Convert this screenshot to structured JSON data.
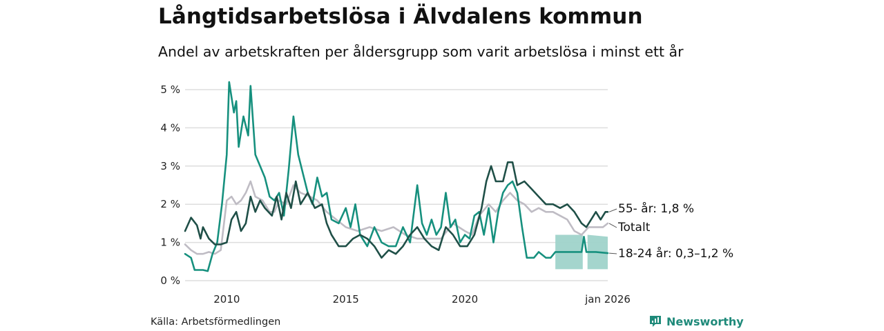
{
  "header": {
    "title": "Långtidsarbetslösa i Älvdalens kommun",
    "subtitle": "Andel av arbetskraften per åldersgrupp som varit arbetslösa i minst ett år"
  },
  "footer": {
    "source": "Källa: Arbetsförmedlingen",
    "brand": "Newsworthy"
  },
  "colors": {
    "age55": "#1f4f47",
    "total": "#bfbcc4",
    "age18_24": "#16907e",
    "band": "#9fd3ca",
    "grid": "#dddddd"
  },
  "chart_data": {
    "type": "line",
    "title": "Långtidsarbetslösa i Älvdalens kommun",
    "xlabel": "",
    "ylabel": "",
    "xlim": [
      2008.25,
      2026.0
    ],
    "ylim": [
      0,
      5
    ],
    "y_ticks": [
      0,
      1,
      2,
      3,
      4,
      5
    ],
    "y_tick_labels": [
      "0 %",
      "1 %",
      "2 %",
      "3 %",
      "4 %",
      "5 %"
    ],
    "x_ticks": [
      2010,
      2015,
      2020,
      2026.0
    ],
    "x_tick_labels": [
      "2010",
      "2015",
      "2020",
      "jan 2026"
    ],
    "series": [
      {
        "name": "Totalt",
        "label": "Totalt",
        "color_key": "total",
        "points": [
          [
            2008.25,
            0.95
          ],
          [
            2008.5,
            0.8
          ],
          [
            2008.75,
            0.7
          ],
          [
            2009.0,
            0.7
          ],
          [
            2009.25,
            0.75
          ],
          [
            2009.5,
            0.7
          ],
          [
            2009.75,
            0.8
          ],
          [
            2010.0,
            2.1
          ],
          [
            2010.2,
            2.2
          ],
          [
            2010.4,
            2.0
          ],
          [
            2010.6,
            2.1
          ],
          [
            2010.8,
            2.3
          ],
          [
            2011.0,
            2.6
          ],
          [
            2011.2,
            2.2
          ],
          [
            2011.5,
            2.1
          ],
          [
            2011.8,
            1.8
          ],
          [
            2012.0,
            1.8
          ],
          [
            2012.2,
            2.1
          ],
          [
            2012.5,
            2.0
          ],
          [
            2012.8,
            2.5
          ],
          [
            2013.1,
            2.3
          ],
          [
            2013.5,
            2.2
          ],
          [
            2013.8,
            2.1
          ],
          [
            2014.2,
            1.8
          ],
          [
            2014.6,
            1.6
          ],
          [
            2015.0,
            1.4
          ],
          [
            2015.5,
            1.3
          ],
          [
            2016.0,
            1.4
          ],
          [
            2016.5,
            1.3
          ],
          [
            2017.0,
            1.4
          ],
          [
            2017.5,
            1.2
          ],
          [
            2018.0,
            1.1
          ],
          [
            2018.5,
            1.1
          ],
          [
            2019.0,
            1.1
          ],
          [
            2019.5,
            1.5
          ],
          [
            2020.0,
            1.3
          ],
          [
            2020.3,
            1.2
          ],
          [
            2020.6,
            1.7
          ],
          [
            2021.0,
            2.0
          ],
          [
            2021.3,
            1.8
          ],
          [
            2021.6,
            2.1
          ],
          [
            2021.9,
            2.3
          ],
          [
            2022.2,
            2.1
          ],
          [
            2022.5,
            2.0
          ],
          [
            2022.8,
            1.8
          ],
          [
            2023.1,
            1.9
          ],
          [
            2023.4,
            1.8
          ],
          [
            2023.7,
            1.8
          ],
          [
            2024.0,
            1.7
          ],
          [
            2024.3,
            1.6
          ],
          [
            2024.6,
            1.3
          ],
          [
            2024.9,
            1.2
          ],
          [
            2025.2,
            1.4
          ],
          [
            2025.5,
            1.4
          ],
          [
            2025.8,
            1.4
          ],
          [
            2026.0,
            1.5
          ]
        ]
      },
      {
        "name": "55- år",
        "label": "55- år: 1,8 %",
        "color_key": "age55",
        "points": [
          [
            2008.25,
            1.3
          ],
          [
            2008.5,
            1.65
          ],
          [
            2008.75,
            1.45
          ],
          [
            2008.9,
            1.1
          ],
          [
            2009.0,
            1.4
          ],
          [
            2009.25,
            1.1
          ],
          [
            2009.5,
            0.95
          ],
          [
            2009.75,
            0.95
          ],
          [
            2010.0,
            1.0
          ],
          [
            2010.2,
            1.6
          ],
          [
            2010.4,
            1.8
          ],
          [
            2010.6,
            1.3
          ],
          [
            2010.8,
            1.5
          ],
          [
            2011.0,
            2.2
          ],
          [
            2011.2,
            1.8
          ],
          [
            2011.4,
            2.1
          ],
          [
            2011.6,
            1.9
          ],
          [
            2011.9,
            1.7
          ],
          [
            2012.1,
            2.2
          ],
          [
            2012.3,
            1.6
          ],
          [
            2012.5,
            2.3
          ],
          [
            2012.7,
            1.9
          ],
          [
            2012.9,
            2.6
          ],
          [
            2013.1,
            2.0
          ],
          [
            2013.4,
            2.3
          ],
          [
            2013.7,
            1.9
          ],
          [
            2014.0,
            2.0
          ],
          [
            2014.2,
            1.5
          ],
          [
            2014.4,
            1.2
          ],
          [
            2014.7,
            0.9
          ],
          [
            2015.0,
            0.9
          ],
          [
            2015.3,
            1.1
          ],
          [
            2015.6,
            1.2
          ],
          [
            2015.9,
            1.1
          ],
          [
            2016.2,
            0.9
          ],
          [
            2016.5,
            0.6
          ],
          [
            2016.8,
            0.8
          ],
          [
            2017.1,
            0.7
          ],
          [
            2017.4,
            0.9
          ],
          [
            2017.7,
            1.2
          ],
          [
            2018.0,
            1.4
          ],
          [
            2018.3,
            1.1
          ],
          [
            2018.6,
            0.9
          ],
          [
            2018.9,
            0.8
          ],
          [
            2019.2,
            1.4
          ],
          [
            2019.5,
            1.2
          ],
          [
            2019.8,
            0.9
          ],
          [
            2020.1,
            0.9
          ],
          [
            2020.4,
            1.2
          ],
          [
            2020.7,
            1.9
          ],
          [
            2020.9,
            2.6
          ],
          [
            2021.1,
            3.0
          ],
          [
            2021.3,
            2.6
          ],
          [
            2021.6,
            2.6
          ],
          [
            2021.8,
            3.1
          ],
          [
            2022.0,
            3.1
          ],
          [
            2022.2,
            2.5
          ],
          [
            2022.5,
            2.6
          ],
          [
            2022.8,
            2.4
          ],
          [
            2023.1,
            2.2
          ],
          [
            2023.4,
            2.0
          ],
          [
            2023.7,
            2.0
          ],
          [
            2024.0,
            1.9
          ],
          [
            2024.3,
            2.0
          ],
          [
            2024.6,
            1.8
          ],
          [
            2024.9,
            1.5
          ],
          [
            2025.1,
            1.4
          ],
          [
            2025.3,
            1.6
          ],
          [
            2025.5,
            1.8
          ],
          [
            2025.7,
            1.6
          ],
          [
            2025.9,
            1.8
          ],
          [
            2026.0,
            1.8
          ]
        ]
      },
      {
        "name": "18-24 år",
        "label": "18-24 år: 0,3–1,2 %",
        "color_key": "age18_24",
        "points": [
          [
            2008.25,
            0.7
          ],
          [
            2008.5,
            0.6
          ],
          [
            2008.65,
            0.28
          ],
          [
            2009.0,
            0.28
          ],
          [
            2009.2,
            0.25
          ],
          [
            2009.4,
            0.7
          ],
          [
            2009.6,
            1.0
          ],
          [
            2009.8,
            2.0
          ],
          [
            2010.0,
            3.3
          ],
          [
            2010.1,
            5.2
          ],
          [
            2010.3,
            4.4
          ],
          [
            2010.4,
            4.7
          ],
          [
            2010.5,
            3.5
          ],
          [
            2010.7,
            4.3
          ],
          [
            2010.9,
            3.8
          ],
          [
            2011.0,
            5.1
          ],
          [
            2011.2,
            3.3
          ],
          [
            2011.4,
            3.0
          ],
          [
            2011.6,
            2.7
          ],
          [
            2011.8,
            2.2
          ],
          [
            2012.0,
            2.1
          ],
          [
            2012.2,
            2.3
          ],
          [
            2012.4,
            1.7
          ],
          [
            2012.6,
            2.9
          ],
          [
            2012.8,
            4.3
          ],
          [
            2013.0,
            3.3
          ],
          [
            2013.2,
            2.8
          ],
          [
            2013.4,
            2.3
          ],
          [
            2013.6,
            2.0
          ],
          [
            2013.8,
            2.7
          ],
          [
            2014.0,
            2.2
          ],
          [
            2014.2,
            2.3
          ],
          [
            2014.4,
            1.6
          ],
          [
            2014.7,
            1.5
          ],
          [
            2015.0,
            1.9
          ],
          [
            2015.2,
            1.4
          ],
          [
            2015.4,
            2.0
          ],
          [
            2015.6,
            1.2
          ],
          [
            2015.9,
            0.9
          ],
          [
            2016.2,
            1.4
          ],
          [
            2016.5,
            1.0
          ],
          [
            2016.8,
            0.9
          ],
          [
            2017.1,
            0.9
          ],
          [
            2017.4,
            1.4
          ],
          [
            2017.7,
            1.0
          ],
          [
            2018.0,
            2.5
          ],
          [
            2018.2,
            1.5
          ],
          [
            2018.4,
            1.2
          ],
          [
            2018.6,
            1.6
          ],
          [
            2018.8,
            1.2
          ],
          [
            2019.0,
            1.4
          ],
          [
            2019.2,
            2.3
          ],
          [
            2019.4,
            1.4
          ],
          [
            2019.6,
            1.6
          ],
          [
            2019.8,
            1.0
          ],
          [
            2020.0,
            1.2
          ],
          [
            2020.2,
            1.1
          ],
          [
            2020.4,
            1.7
          ],
          [
            2020.6,
            1.8
          ],
          [
            2020.8,
            1.2
          ],
          [
            2021.0,
            1.9
          ],
          [
            2021.2,
            1.0
          ],
          [
            2021.4,
            1.8
          ],
          [
            2021.6,
            2.3
          ],
          [
            2021.8,
            2.5
          ],
          [
            2022.0,
            2.6
          ],
          [
            2022.2,
            2.3
          ],
          [
            2022.4,
            1.4
          ],
          [
            2022.6,
            0.6
          ],
          [
            2022.9,
            0.6
          ],
          [
            2023.1,
            0.75
          ],
          [
            2023.4,
            0.6
          ],
          [
            2023.6,
            0.6
          ],
          [
            2023.8,
            0.75
          ],
          [
            2024.2,
            0.75
          ],
          [
            2024.6,
            0.75
          ],
          [
            2024.9,
            0.75
          ],
          [
            2025.0,
            1.15
          ],
          [
            2025.1,
            0.75
          ],
          [
            2025.5,
            0.75
          ],
          [
            2026.0,
            0.72
          ]
        ],
        "range_band": {
          "label": "0,3–1,2 %",
          "segments": [
            [
              [
                2023.8,
                0.3,
                1.2
              ],
              [
                2024.95,
                0.3,
                1.2
              ]
            ],
            [
              [
                2025.15,
                0.3,
                1.2
              ],
              [
                2026.0,
                0.3,
                1.15
              ]
            ]
          ]
        }
      }
    ],
    "end_labels": [
      "55- år: 1,8 %",
      "Totalt",
      "18-24 år: 0,3–1,2 %"
    ]
  }
}
